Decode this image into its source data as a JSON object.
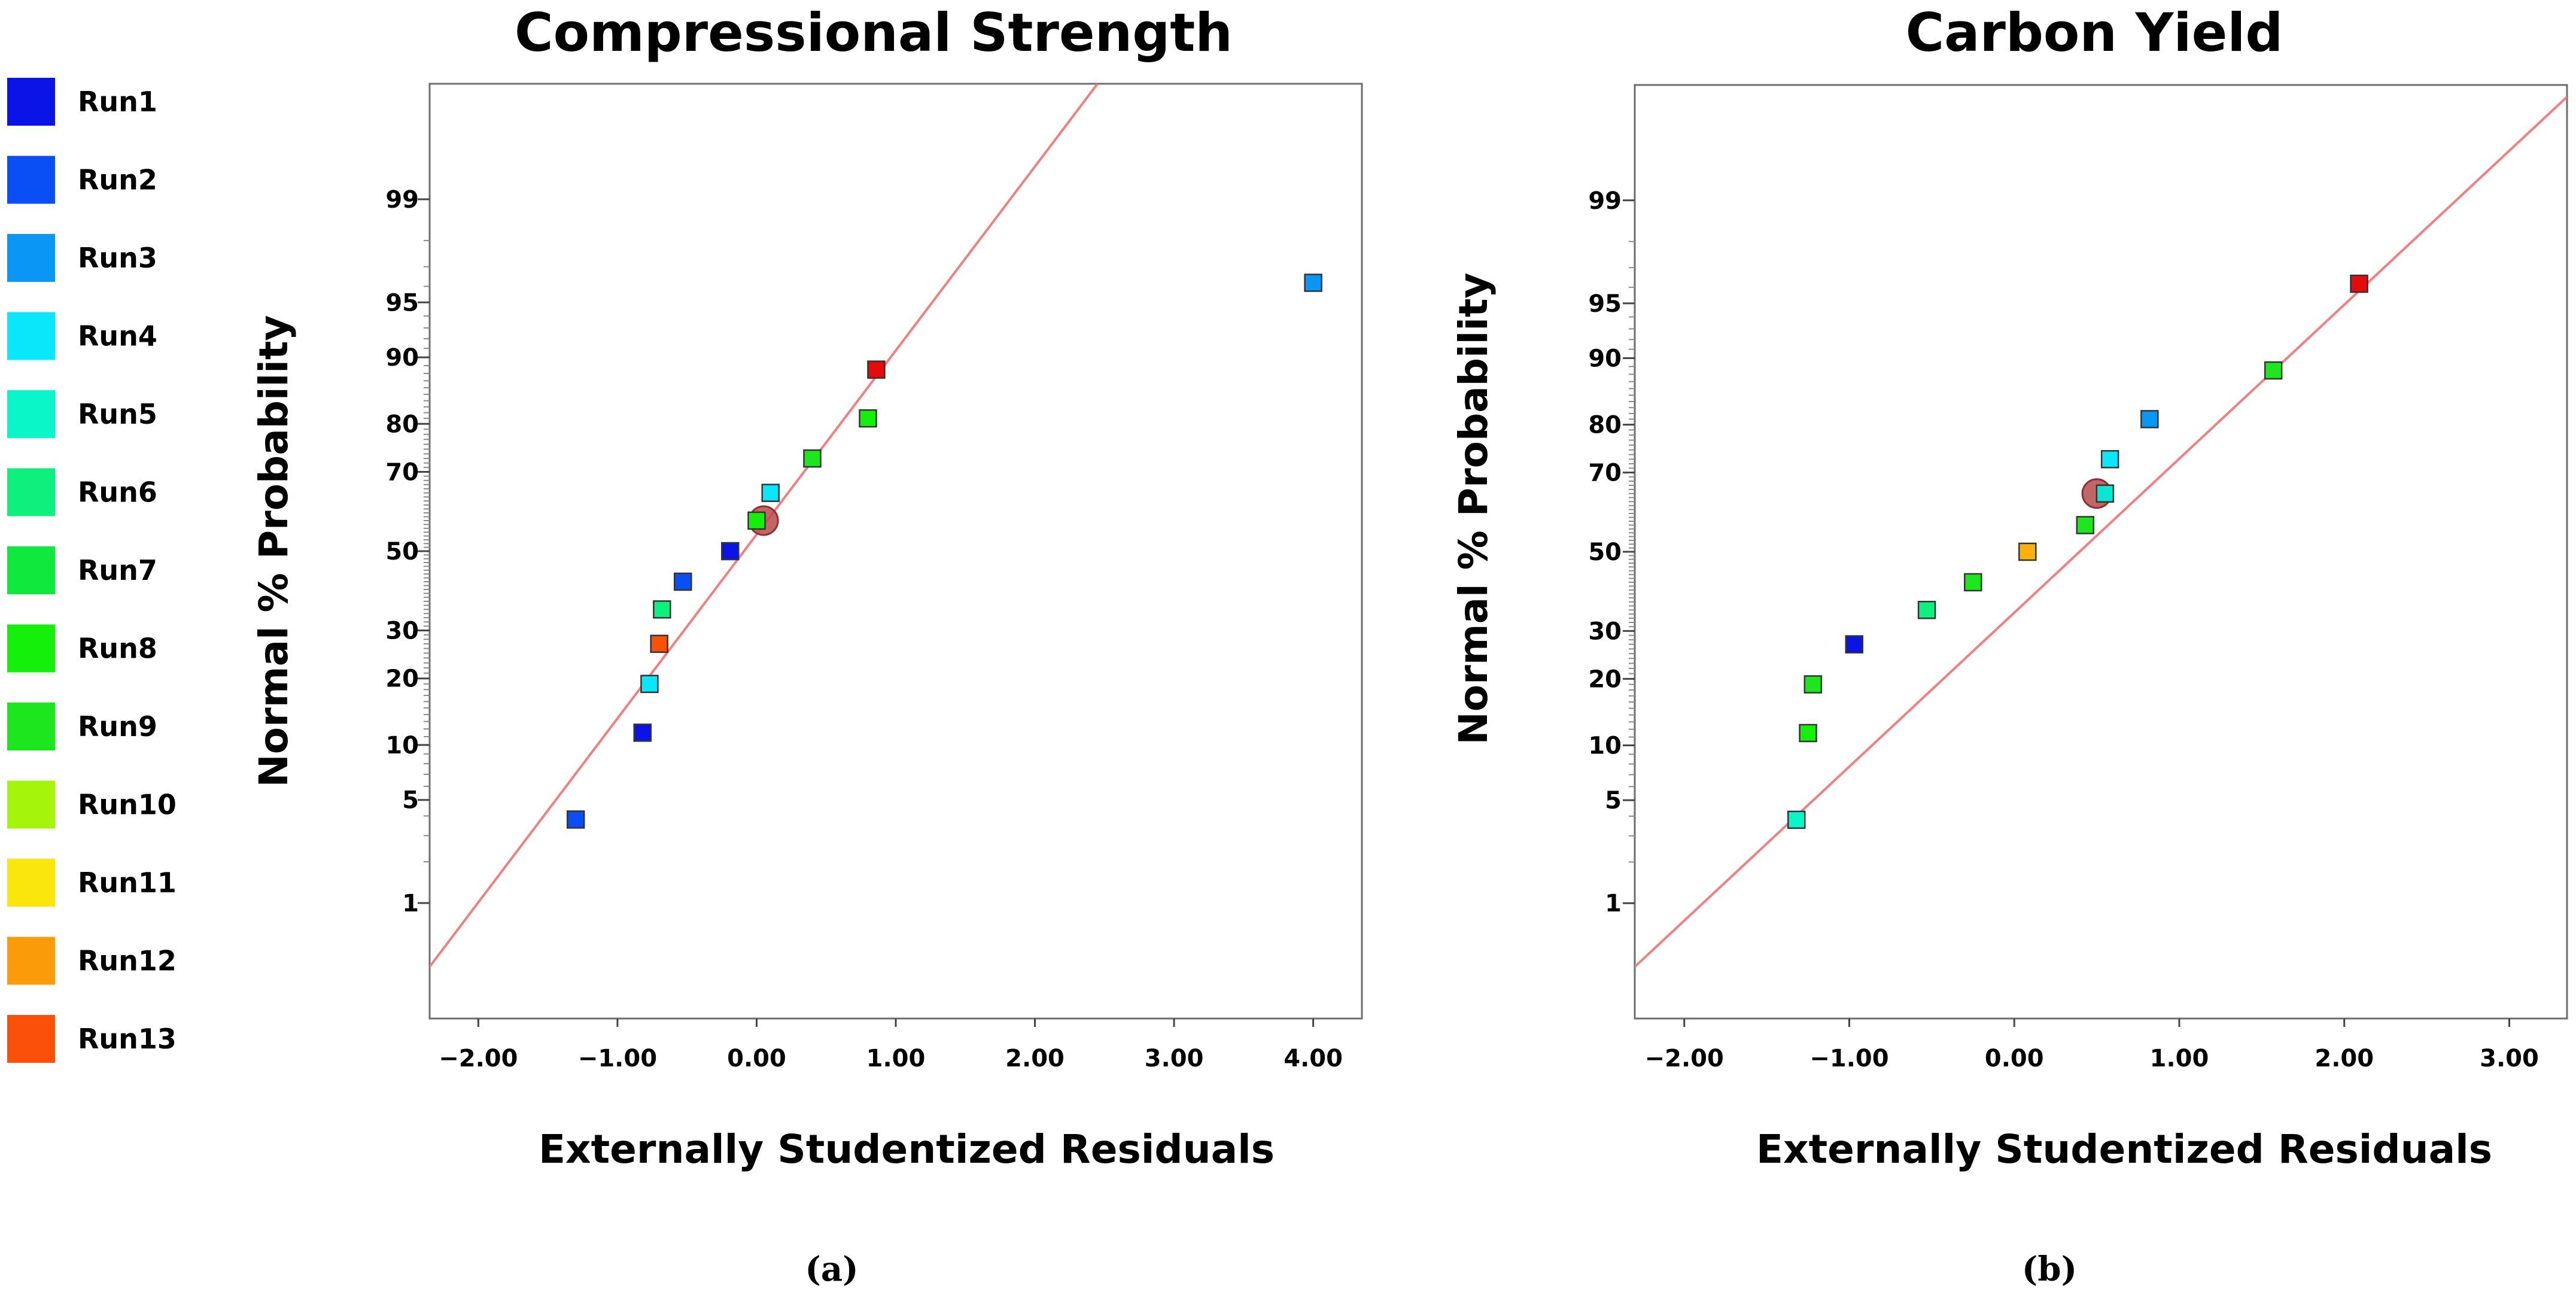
{
  "legend": {
    "items": [
      {
        "label": "Run1",
        "color": "#0a14e6"
      },
      {
        "label": "Run2",
        "color": "#0a4ff5"
      },
      {
        "label": "Run3",
        "color": "#0a96f5"
      },
      {
        "label": "Run4",
        "color": "#0ae6fa"
      },
      {
        "label": "Run5",
        "color": "#0af5c8"
      },
      {
        "label": "Run6",
        "color": "#0ef07e"
      },
      {
        "label": "Run7",
        "color": "#0fe83c"
      },
      {
        "label": "Run8",
        "color": "#14f00a"
      },
      {
        "label": "Run9",
        "color": "#1ee61e"
      },
      {
        "label": "Run10",
        "color": "#a4f50a"
      },
      {
        "label": "Run11",
        "color": "#fae60a"
      },
      {
        "label": "Run12",
        "color": "#fa9b0a"
      },
      {
        "label": "Run13",
        "color": "#fa500a"
      }
    ]
  },
  "chart_data": [
    {
      "type": "scatter",
      "title": "Compressional Strength",
      "xlabel": "Externally Studentized Residuals",
      "ylabel": "Normal % Probability",
      "caption": "(a)",
      "xlim": [
        -2.35,
        4.35
      ],
      "x_ticks": [
        "−2.00",
        "−1.00",
        "0.00",
        "1.00",
        "2.00",
        "3.00",
        "4.00"
      ],
      "x_tick_values": [
        -2,
        -1,
        0,
        1,
        2,
        3,
        4
      ],
      "y_scale": "normal-probability",
      "ylim_percent": [
        0.1,
        99.9
      ],
      "y_ticks": [
        "1",
        "5",
        "10",
        "20",
        "30",
        "50",
        "70",
        "80",
        "90",
        "95",
        "99"
      ],
      "y_tick_values": [
        1,
        5,
        10,
        20,
        30,
        50,
        70,
        80,
        90,
        95,
        99
      ],
      "fit_line": {
        "x": [
          -2.35,
          2.45
        ],
        "y_percent": [
          0.3,
          99.9
        ]
      },
      "highlight": {
        "x": 0.05,
        "y_percent": 58
      },
      "points": [
        {
          "x": -1.3,
          "y": 3.8,
          "color": "#0a4ff5"
        },
        {
          "x": -0.82,
          "y": 11.5,
          "color": "#0a14e6"
        },
        {
          "x": -0.77,
          "y": 19,
          "color": "#0ae6fa"
        },
        {
          "x": -0.7,
          "y": 27,
          "color": "#fa500a"
        },
        {
          "x": -0.68,
          "y": 35,
          "color": "#0ef07e"
        },
        {
          "x": -0.53,
          "y": 42,
          "color": "#0a4ff5"
        },
        {
          "x": -0.19,
          "y": 50,
          "color": "#0a14e6"
        },
        {
          "x": 0.0,
          "y": 58,
          "color": "#14f00a"
        },
        {
          "x": 0.1,
          "y": 65,
          "color": "#0ae6fa"
        },
        {
          "x": 0.4,
          "y": 73,
          "color": "#1ee61e"
        },
        {
          "x": 0.8,
          "y": 81,
          "color": "#14f00a"
        },
        {
          "x": 0.86,
          "y": 88.5,
          "color": "#e60a0a"
        },
        {
          "x": 4.0,
          "y": 96.2,
          "color": "#0a96f5"
        }
      ]
    },
    {
      "type": "scatter",
      "title": "Carbon Yield",
      "xlabel": "Externally Studentized Residuals",
      "ylabel": "Normal % Probability",
      "caption": "(b)",
      "xlim": [
        -2.3,
        3.35
      ],
      "x_ticks": [
        "−2.00",
        "−1.00",
        "0.00",
        "1.00",
        "2.00",
        "3.00"
      ],
      "x_tick_values": [
        -2,
        -1,
        0,
        1,
        2,
        3
      ],
      "y_scale": "normal-probability",
      "ylim_percent": [
        0.1,
        99.9
      ],
      "y_ticks": [
        "1",
        "5",
        "10",
        "20",
        "30",
        "50",
        "70",
        "80",
        "90",
        "95",
        "99"
      ],
      "y_tick_values": [
        1,
        5,
        10,
        20,
        30,
        50,
        70,
        80,
        90,
        95,
        99
      ],
      "fit_line": {
        "x": [
          -2.3,
          3.35
        ],
        "y_percent": [
          0.3,
          99.87
        ]
      },
      "highlight": {
        "x": 0.5,
        "y_percent": 65
      },
      "points": [
        {
          "x": -1.32,
          "y": 3.8,
          "color": "#0af5c8"
        },
        {
          "x": -1.25,
          "y": 11.5,
          "color": "#14f00a"
        },
        {
          "x": -1.22,
          "y": 19,
          "color": "#1ee61e"
        },
        {
          "x": -0.97,
          "y": 27,
          "color": "#0a14e6"
        },
        {
          "x": -0.53,
          "y": 35,
          "color": "#0ef07e"
        },
        {
          "x": -0.25,
          "y": 42,
          "color": "#1ee61e"
        },
        {
          "x": 0.08,
          "y": 50,
          "color": "#fab20a"
        },
        {
          "x": 0.43,
          "y": 57,
          "color": "#1ee61e"
        },
        {
          "x": 0.55,
          "y": 65,
          "color": "#0ae6d2"
        },
        {
          "x": 0.58,
          "y": 73,
          "color": "#0ae6fa"
        },
        {
          "x": 0.82,
          "y": 81,
          "color": "#0a96f5"
        },
        {
          "x": 1.57,
          "y": 88.5,
          "color": "#1ee61e"
        },
        {
          "x": 2.09,
          "y": 96.2,
          "color": "#e60a0a"
        }
      ]
    }
  ]
}
